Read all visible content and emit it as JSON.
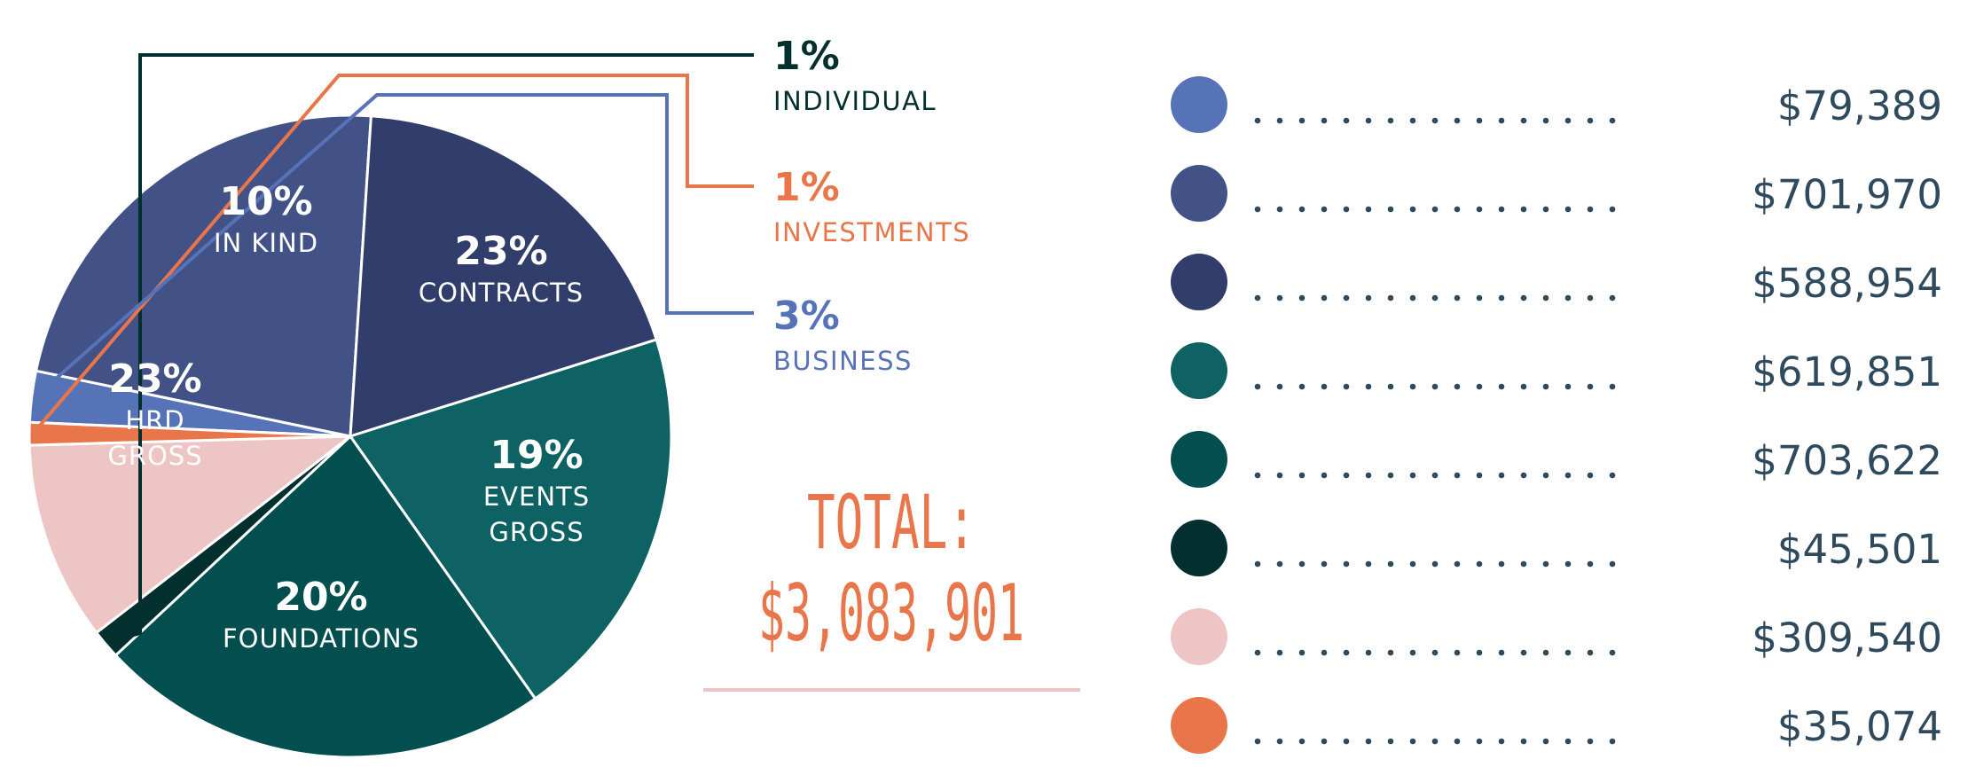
{
  "chart_data": {
    "type": "pie",
    "slices": [
      {
        "name": "BUSINESS",
        "percent": "3%",
        "value": 79389,
        "color": "#5773b7"
      },
      {
        "name": "CONTRACTS",
        "percent": "23%",
        "value": 701970,
        "color": "#425287"
      },
      {
        "name": "EVENTS GROSS",
        "percent": "19%",
        "value": 588954,
        "color": "#313d6b"
      },
      {
        "name": "FOUNDATIONS",
        "percent": "20%",
        "value": 619851,
        "color": "#0e6263"
      },
      {
        "name": "HRD GROSS",
        "percent": "23%",
        "value": 703622,
        "color": "#034f50"
      },
      {
        "name": "INDIVIDUAL",
        "percent": "1%",
        "value": 45501,
        "color": "#032f2f"
      },
      {
        "name": "IN KIND",
        "percent": "10%",
        "value": 309540,
        "color": "#eec5c5"
      },
      {
        "name": "INVESTMENTS",
        "percent": "1%",
        "value": 35074,
        "color": "#e8764a"
      }
    ],
    "inner_labels": [
      {
        "pct": "23%",
        "lines": [
          "CONTRACTS"
        ]
      },
      {
        "pct": "19%",
        "lines": [
          "EVENTS",
          "GROSS"
        ]
      },
      {
        "pct": "20%",
        "lines": [
          "FOUNDATIONS"
        ]
      },
      {
        "pct": "23%",
        "lines": [
          "HRD",
          "GROSS"
        ]
      },
      {
        "pct": "10%",
        "lines": [
          "IN KIND"
        ]
      }
    ],
    "callouts": [
      {
        "pct": "1%",
        "name": "INDIVIDUAL",
        "color": "#032f2f"
      },
      {
        "pct": "1%",
        "name": "INVESTMENTS",
        "color": "#e8764a"
      },
      {
        "pct": "3%",
        "name": "BUSINESS",
        "color": "#5773b7"
      }
    ],
    "total_label": "TOTAL:",
    "total_value": "$3,083,901",
    "legend": [
      {
        "amount": "$79,389",
        "color": "#5773b7"
      },
      {
        "amount": "$701,970",
        "color": "#425287"
      },
      {
        "amount": "$588,954",
        "color": "#313d6b"
      },
      {
        "amount": "$619,851",
        "color": "#0e6263"
      },
      {
        "amount": "$703,622",
        "color": "#034f50"
      },
      {
        "amount": "$45,501",
        "color": "#032f2f"
      },
      {
        "amount": "$309,540",
        "color": "#eec5c5"
      },
      {
        "amount": "$35,074",
        "color": "#e8764a"
      }
    ]
  }
}
